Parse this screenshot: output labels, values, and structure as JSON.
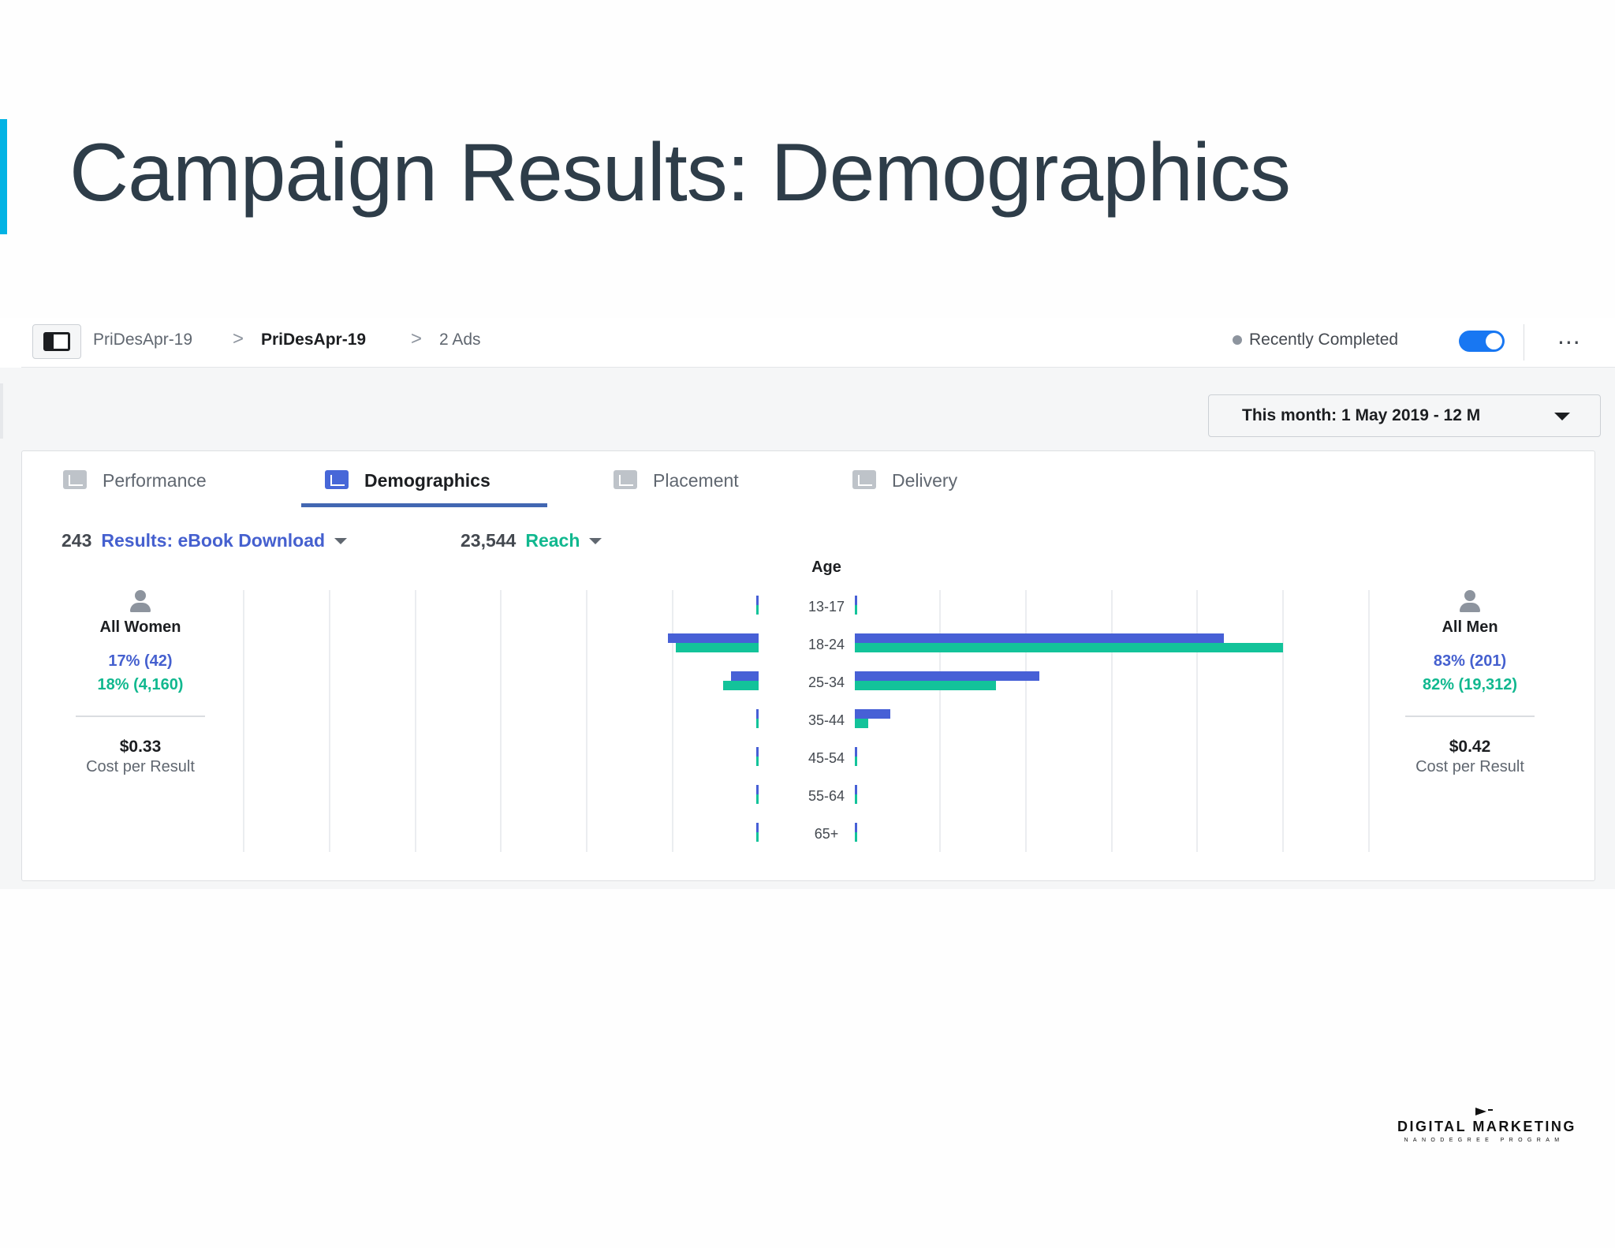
{
  "slide": {
    "title": "Campaign Results: Demographics"
  },
  "topbar": {
    "breadcrumbs": [
      "PriDesApr-19",
      "PriDesApr-19",
      "2 Ads"
    ],
    "separator": ">",
    "status": "Recently Completed",
    "toggle_on": true,
    "more": "..."
  },
  "date_range": "This month: 1 May 2019 - 12 M",
  "tabs": [
    {
      "label": "Performance",
      "icon": "bar-chart-icon",
      "active": false
    },
    {
      "label": "Demographics",
      "icon": "people-icon",
      "active": true
    },
    {
      "label": "Placement",
      "icon": "placement-icon",
      "active": false
    },
    {
      "label": "Delivery",
      "icon": "line-chart-icon",
      "active": false
    }
  ],
  "metrics": {
    "results_count": "243",
    "results_label": "Results: eBook Download",
    "reach_count": "23,544",
    "reach_label": "Reach"
  },
  "women": {
    "label": "All Women",
    "results_pct": "17% (42)",
    "reach_pct": "18% (4,160)",
    "cost": "$0.33",
    "cost_label": "Cost per Result"
  },
  "men": {
    "label": "All Men",
    "results_pct": "83% (201)",
    "reach_pct": "82% (19,312)",
    "cost": "$0.42",
    "cost_label": "Cost per Result"
  },
  "chart_data": {
    "type": "bar",
    "title": "Age",
    "orientation": "horizontal-diverging",
    "categories": [
      "13-17",
      "18-24",
      "25-34",
      "35-44",
      "45-54",
      "55-64",
      "65+"
    ],
    "series": [
      {
        "side": "women",
        "metric": "Results: eBook Download",
        "color": "#4760d6",
        "values": [
          0,
          23,
          7,
          0.5,
          0,
          0,
          0
        ]
      },
      {
        "side": "women",
        "metric": "Reach",
        "color": "#13c39a",
        "values": [
          0,
          21,
          9,
          0.5,
          0.3,
          0.3,
          0.3
        ]
      },
      {
        "side": "men",
        "metric": "Results: eBook Download",
        "color": "#4760d6",
        "values": [
          0,
          94,
          47,
          9,
          0.5,
          0.5,
          0.5
        ]
      },
      {
        "side": "men",
        "metric": "Reach",
        "color": "#13c39a",
        "values": [
          0,
          109,
          36,
          3.5,
          0.5,
          0.5,
          0.5
        ]
      }
    ],
    "grid": true
  },
  "colors": {
    "results": "#4760d6",
    "reach": "#13c39a",
    "accent": "#02b3e4",
    "tab_underline": "#4267b2"
  },
  "logo": {
    "main": "DIGITAL MARKETING",
    "sub": "NANODEGREE PROGRAM"
  }
}
